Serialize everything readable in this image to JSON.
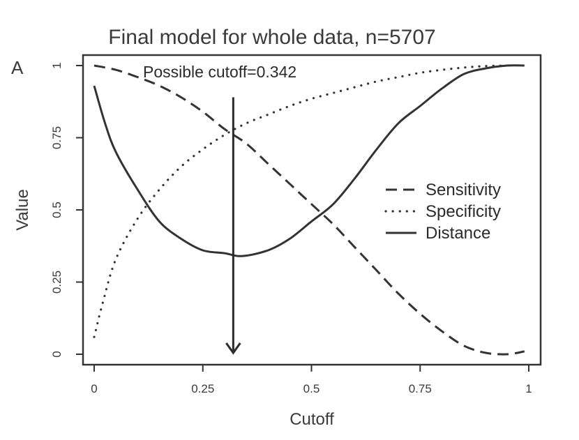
{
  "chart_data": {
    "type": "line",
    "panel_label": "A",
    "title": "Final model for whole data, n=5707",
    "xlabel": "Cutoff",
    "ylabel": "Value",
    "xlim": [
      0,
      1
    ],
    "ylim": [
      0,
      1
    ],
    "x_ticks": [
      "0",
      "0.25",
      "0.5",
      "0.75",
      "1"
    ],
    "y_ticks": [
      "0",
      "0.25",
      "0.5",
      "0.75",
      "1"
    ],
    "grid": false,
    "legend_position": "right",
    "annotation": {
      "text": "Possible cutoff=0.342",
      "x": 0.32,
      "y_top": 0.89,
      "y_bottom": 0.0
    },
    "series": [
      {
        "name": "Sensitivity",
        "style": "dashed",
        "x": [
          0.0,
          0.05,
          0.1,
          0.15,
          0.2,
          0.25,
          0.3,
          0.35,
          0.4,
          0.45,
          0.5,
          0.55,
          0.6,
          0.65,
          0.7,
          0.75,
          0.8,
          0.85,
          0.9,
          0.95,
          0.99
        ],
        "y": [
          1.0,
          0.985,
          0.96,
          0.93,
          0.89,
          0.84,
          0.78,
          0.73,
          0.66,
          0.59,
          0.52,
          0.45,
          0.37,
          0.29,
          0.21,
          0.14,
          0.08,
          0.03,
          0.005,
          0.0,
          0.01
        ]
      },
      {
        "name": "Specificity",
        "style": "dotted",
        "x": [
          0.0,
          0.02,
          0.05,
          0.1,
          0.15,
          0.2,
          0.25,
          0.3,
          0.35,
          0.4,
          0.45,
          0.5,
          0.55,
          0.6,
          0.65,
          0.7,
          0.75,
          0.8,
          0.85,
          0.9,
          0.95
        ],
        "y": [
          0.06,
          0.18,
          0.33,
          0.47,
          0.57,
          0.65,
          0.71,
          0.76,
          0.8,
          0.83,
          0.86,
          0.885,
          0.905,
          0.925,
          0.945,
          0.96,
          0.975,
          0.985,
          0.993,
          0.998,
          1.0
        ]
      },
      {
        "name": "Distance",
        "style": "solid",
        "x": [
          0.0,
          0.025,
          0.05,
          0.1,
          0.15,
          0.2,
          0.25,
          0.3,
          0.34,
          0.4,
          0.45,
          0.5,
          0.55,
          0.6,
          0.65,
          0.7,
          0.75,
          0.8,
          0.85,
          0.9,
          0.95,
          0.99
        ],
        "y": [
          0.93,
          0.8,
          0.7,
          0.57,
          0.46,
          0.4,
          0.36,
          0.35,
          0.34,
          0.36,
          0.4,
          0.46,
          0.52,
          0.61,
          0.71,
          0.8,
          0.86,
          0.92,
          0.97,
          0.99,
          1.0,
          1.0
        ]
      }
    ]
  }
}
